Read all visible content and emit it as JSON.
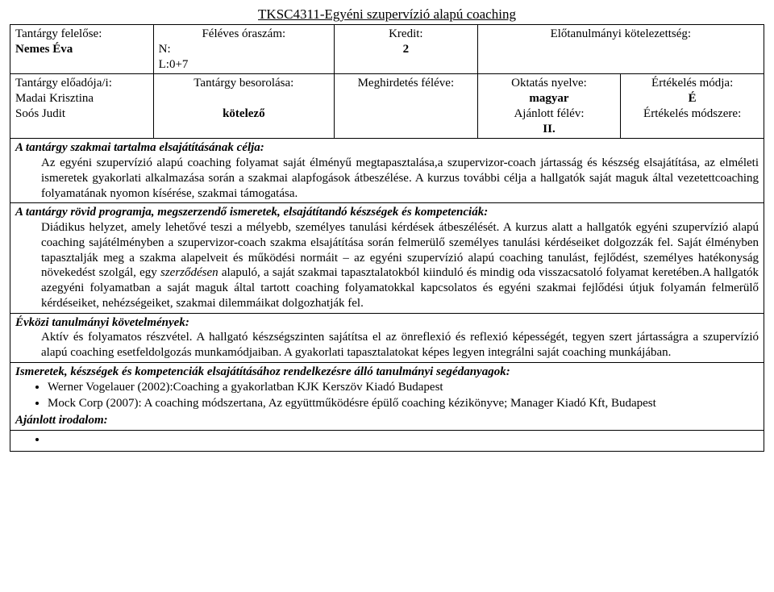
{
  "title": "TKSC4311-Egyéni szupervízió alapú coaching",
  "row1": {
    "c1_l1": "Tantárgy felelőse:",
    "c1_l2": "Nemes Éva",
    "c2_l1": "Féléves óraszám:",
    "c2_l2": "N:",
    "c2_l3": "L:0+7",
    "c3_l1": "Kredit:",
    "c3_l2": "2",
    "c4_l1": "Előtanulmányi kötelezettség:"
  },
  "row2": {
    "c1_l1": "Tantárgy előadója/i:",
    "c1_l2": "Madai Krisztina",
    "c1_l3": "Soós Judit",
    "c2_l1": "Tantárgy besorolása:",
    "c2_l2": "kötelező",
    "c3_l1": "Meghirdetés féléve:",
    "c4_l1": "Oktatás nyelve:",
    "c4_l2": "magyar",
    "c4_l3": "Ajánlott félév:",
    "c4_l4": "II.",
    "c5_l1": "Értékelés módja:",
    "c5_l2": "É",
    "c5_l3": "Értékelés módszere:"
  },
  "sections": {
    "content_head": "A tantárgy szakmai tartalma elsajátításának célja:",
    "content_body": "Az egyéni szupervízió alapú coaching folyamat saját élményű megtapasztalása,a szupervizor-coach jártasság és készség elsajátítása, az elméleti ismeretek gyakorlati alkalmazása során a szakmai alapfogások átbeszélése. A kurzus további célja a hallgatók saját maguk által vezetettcoaching folyamatának nyomon kísérése, szakmai támogatása.",
    "program_head": "A tantárgy rövid programja, megszerzendő ismeretek, elsajátítandó készségek és kompetenciák:",
    "program_body": "Diádikus helyzet, amely lehetővé teszi a mélyebb, személyes tanulási kérdések átbeszélését. A kurzus alatt a hallgatók egyéni szupervízió alapú coaching  sajátélményben a szupervizor-coach szakma elsajátítása során felmerülő személyes tanulási kérdéseiket dolgozzák fel. Saját élményben tapasztalják meg a szakma alapelveit és működési normáit – az egyéni szupervízió alapú coaching tanulást, fejlődést, személyes hatékonyság növekedést szolgál, egy szerződésen alapuló, a saját szakmai tapasztalatokból kiinduló és mindig oda visszacsatoló folyamat keretében.A hallgatók azegyéni folyamatban a saját maguk által tartott coaching folyamatokkal kapcsolatos és egyéni szakmai fejlődési útjuk folyamán felmerülő kérdéseiket, nehézségeiket, szakmai dilemmáikat dolgozhatják fel.",
    "reqs_head": "Évközi tanulmányi követelmények:",
    "reqs_body": "Aktív és folyamatos részvétel. A hallgató készségszinten sajátítsa el az önreflexió és reflexió képességét, tegyen szert jártasságra a szupervízió alapú coaching esetfeldolgozás munkamódjaiban. A gyakorlati tapasztalatokat képes legyen integrálni saját coaching  munkájában.",
    "materials_head": "Ismeretek, készségek és kompetenciák elsajátításához rendelkezésre álló tanulmányi segédanyagok:",
    "bib1": "Werner Vogelauer (2002):Coaching a gyakorlatban KJK Kerszöv Kiadó Budapest",
    "bib2": "Mock Corp (2007): A coaching módszertana, Az együttműködésre épülő coaching kézikönyve; Manager Kiadó Kft, Budapest",
    "recommended_head": "Ajánlott irodalom:"
  },
  "italic_word": "szerződésen"
}
